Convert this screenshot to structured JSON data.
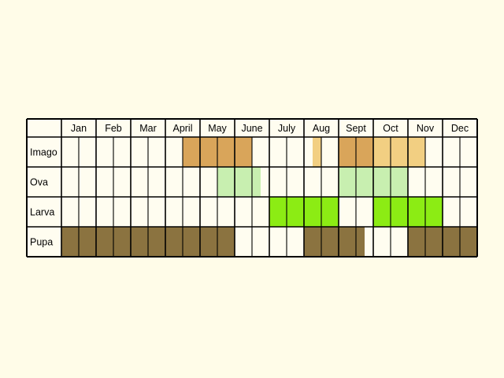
{
  "chart_data": {
    "type": "table",
    "months": [
      "Jan",
      "Feb",
      "Mar",
      "April",
      "May",
      "June",
      "July",
      "Aug",
      "Sept",
      "Oct",
      "Nov",
      "Dec"
    ],
    "rows": [
      {
        "label": "Imago",
        "spans": [
          {
            "from": 7,
            "to": 11,
            "color": "#d9a55a"
          },
          {
            "from": 14.5,
            "to": 15,
            "color": "#f2cf82"
          },
          {
            "from": 16,
            "to": 18,
            "color": "#d9a55a"
          },
          {
            "from": 18,
            "to": 21,
            "color": "#f2cf82"
          }
        ]
      },
      {
        "label": "Ova",
        "spans": [
          {
            "from": 9,
            "to": 11.5,
            "color": "#c8efb0"
          },
          {
            "from": 16,
            "to": 18,
            "color": "#c8efb0"
          },
          {
            "from": 18,
            "to": 20,
            "color": "#c8efb0"
          }
        ]
      },
      {
        "label": "Larva",
        "spans": [
          {
            "from": 12,
            "to": 16,
            "color": "#8cec14"
          },
          {
            "from": 18,
            "to": 22,
            "color": "#8cec14"
          }
        ]
      },
      {
        "label": "Pupa",
        "spans": [
          {
            "from": 0,
            "to": 10,
            "color": "#8b7340"
          },
          {
            "from": 14,
            "to": 17.5,
            "color": "#8b7340"
          },
          {
            "from": 20,
            "to": 24,
            "color": "#8b7340"
          }
        ]
      }
    ]
  }
}
